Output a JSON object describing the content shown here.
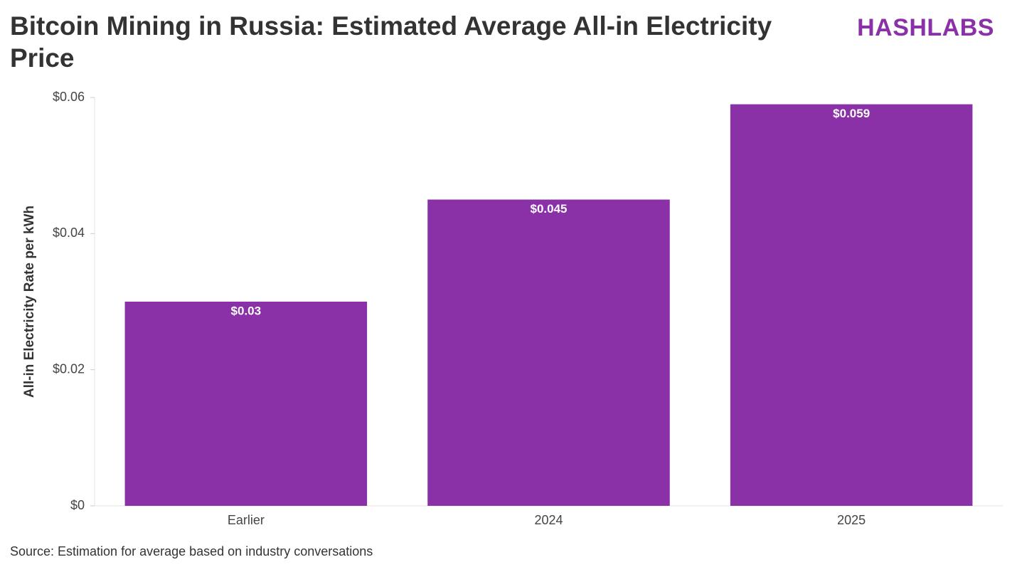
{
  "chart_data": {
    "type": "bar",
    "title": "Bitcoin Mining in Russia: Estimated Average All-in Electricity Price",
    "brand": "HASHLABS",
    "y_label": "All-in Electricity Rate per kWh",
    "source": "Source: Estimation for average based on industry conversations",
    "categories": [
      "Earlier",
      "2024",
      "2025"
    ],
    "values": [
      0.03,
      0.045,
      0.059
    ],
    "value_labels": [
      "$0.03",
      "$0.045",
      "$0.059"
    ],
    "color": "#8b31a8",
    "ylim": [
      0,
      0.06
    ],
    "yticks": [
      {
        "value": 0,
        "label": "$0"
      },
      {
        "value": 0.02,
        "label": "$0.02"
      },
      {
        "value": 0.04,
        "label": "$0.04"
      },
      {
        "value": 0.06,
        "label": "$0.06"
      }
    ],
    "grid": false
  }
}
